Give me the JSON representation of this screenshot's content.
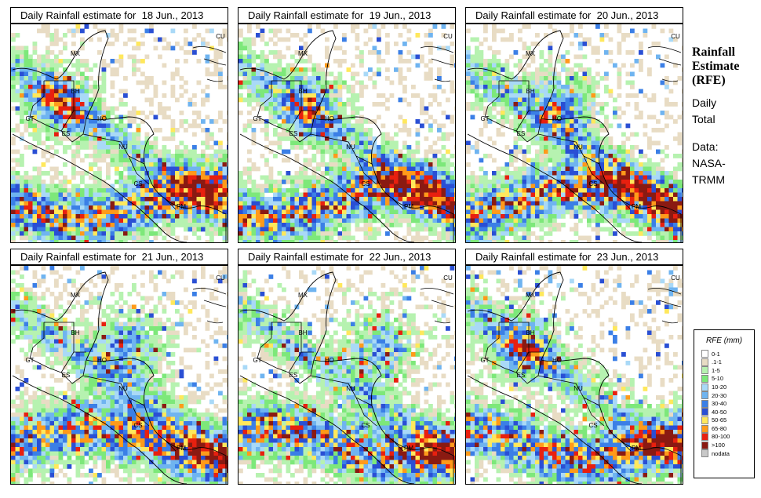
{
  "panels": [
    {
      "title": "Daily Rainfall estimate for  18 Jun., 2013"
    },
    {
      "title": "Daily Rainfall estimate for  19 Jun., 2013"
    },
    {
      "title": "Daily Rainfall estimate for  20 Jun., 2013"
    },
    {
      "title": "Daily Rainfall estimate for  21 Jun., 2013"
    },
    {
      "title": "Daily Rainfall estimate for  22 Jun., 2013"
    },
    {
      "title": "Daily Rainfall estimate for  23 Jun., 2013"
    }
  ],
  "country_labels": [
    "MX",
    "BH",
    "GT",
    "HO",
    "ES",
    "NU",
    "CS",
    "PM",
    "CU"
  ],
  "side": {
    "title_line1": "Rainfall",
    "title_line2": "Estimate",
    "title_line3": "(RFE)",
    "line1": "Daily",
    "line2": "Total",
    "line3": "Data:",
    "line4": "NASA-",
    "line5": "TRMM"
  },
  "legend": {
    "title": "RFE (mm)",
    "items": [
      {
        "label": "0-1",
        "color": "#ffffff"
      },
      {
        "label": ".1-1",
        "color": "#e8dcc4"
      },
      {
        "label": "1-5",
        "color": "#b6f2b0"
      },
      {
        "label": "5-10",
        "color": "#7de87a"
      },
      {
        "label": "10-20",
        "color": "#a9d9f7"
      },
      {
        "label": "20-30",
        "color": "#6fb4f0"
      },
      {
        "label": "30-40",
        "color": "#3b7fe6"
      },
      {
        "label": "40-50",
        "color": "#2a4fd4"
      },
      {
        "label": "50-65",
        "color": "#ffe85c"
      },
      {
        "label": "65-80",
        "color": "#ff9a1a"
      },
      {
        "label": "80-100",
        "color": "#e8200f"
      },
      {
        "label": ">100",
        "color": "#8a1a12"
      },
      {
        "label": "nodata",
        "color": "#c8c8c8"
      }
    ]
  }
}
